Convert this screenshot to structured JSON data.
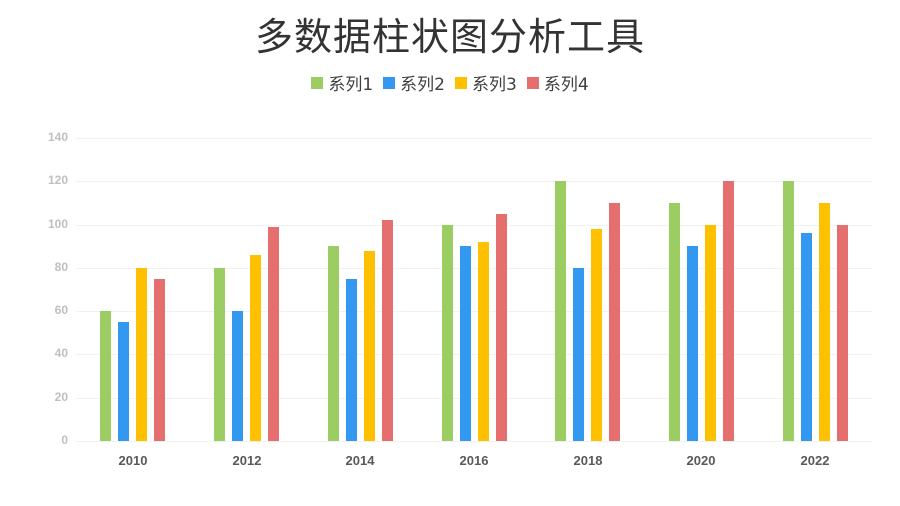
{
  "title": "多数据柱状图分析工具",
  "legend": [
    {
      "label": "系列1",
      "color": "#9ccd63"
    },
    {
      "label": "系列2",
      "color": "#3399f0"
    },
    {
      "label": "系列3",
      "color": "#ffc000"
    },
    {
      "label": "系列4",
      "color": "#e56e6e"
    }
  ],
  "chart_data": {
    "type": "bar",
    "title": "多数据柱状图分析工具",
    "xlabel": "",
    "ylabel": "",
    "categories": [
      "2010",
      "2012",
      "2014",
      "2016",
      "2018",
      "2020",
      "2022"
    ],
    "series": [
      {
        "name": "系列1",
        "color": "#9ccd63",
        "values": [
          60,
          80,
          90,
          100,
          120,
          110,
          120
        ]
      },
      {
        "name": "系列2",
        "color": "#3399f0",
        "values": [
          55,
          60,
          75,
          90,
          80,
          90,
          96
        ]
      },
      {
        "name": "系列3",
        "color": "#ffc000",
        "values": [
          80,
          86,
          88,
          92,
          98,
          100,
          110
        ]
      },
      {
        "name": "系列4",
        "color": "#e56e6e",
        "values": [
          75,
          99,
          102,
          105,
          110,
          120,
          100
        ]
      }
    ],
    "ylim": [
      0,
      140
    ],
    "yticks": [
      0,
      20,
      40,
      60,
      80,
      100,
      120,
      140
    ],
    "grid": true,
    "legend_position": "top"
  }
}
